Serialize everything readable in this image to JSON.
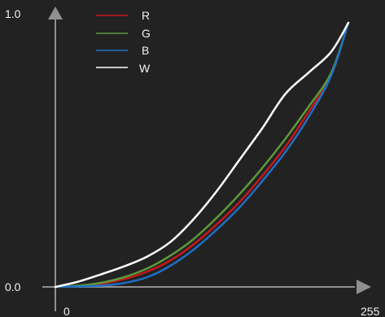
{
  "chart_data": {
    "type": "line",
    "x_ticks": [
      "0",
      "255"
    ],
    "y_ticks": [
      "0.0",
      "1.0"
    ],
    "xlim": [
      0,
      255
    ],
    "ylim": [
      0,
      1
    ],
    "grid": false,
    "legend_position": "top-left",
    "series": [
      {
        "name": "R",
        "color": "#c8171e",
        "points": [
          [
            0,
            0
          ],
          [
            20,
            0.004
          ],
          [
            40,
            0.012
          ],
          [
            60,
            0.03
          ],
          [
            80,
            0.058
          ],
          [
            100,
            0.1
          ],
          [
            120,
            0.16
          ],
          [
            140,
            0.235
          ],
          [
            160,
            0.32
          ],
          [
            180,
            0.42
          ],
          [
            200,
            0.53
          ],
          [
            220,
            0.66
          ],
          [
            240,
            0.8
          ],
          [
            255,
            1
          ]
        ]
      },
      {
        "name": "G",
        "color": "#5c9a3c",
        "points": [
          [
            0,
            0
          ],
          [
            20,
            0.005
          ],
          [
            40,
            0.016
          ],
          [
            60,
            0.037
          ],
          [
            80,
            0.07
          ],
          [
            100,
            0.118
          ],
          [
            120,
            0.18
          ],
          [
            140,
            0.26
          ],
          [
            160,
            0.35
          ],
          [
            180,
            0.45
          ],
          [
            200,
            0.56
          ],
          [
            220,
            0.68
          ],
          [
            240,
            0.81
          ],
          [
            255,
            1
          ]
        ]
      },
      {
        "name": "B",
        "color": "#1e6fc2",
        "points": [
          [
            0,
            0
          ],
          [
            20,
            0.002
          ],
          [
            40,
            0.005
          ],
          [
            60,
            0.015
          ],
          [
            80,
            0.037
          ],
          [
            100,
            0.08
          ],
          [
            120,
            0.14
          ],
          [
            140,
            0.215
          ],
          [
            160,
            0.3
          ],
          [
            180,
            0.4
          ],
          [
            200,
            0.51
          ],
          [
            220,
            0.64
          ],
          [
            240,
            0.8
          ],
          [
            255,
            1
          ]
        ]
      },
      {
        "name": "W",
        "color": "#ffffff",
        "points": [
          [
            0,
            0
          ],
          [
            20,
            0.02
          ],
          [
            40,
            0.048
          ],
          [
            60,
            0.078
          ],
          [
            80,
            0.115
          ],
          [
            100,
            0.17
          ],
          [
            120,
            0.255
          ],
          [
            140,
            0.36
          ],
          [
            160,
            0.48
          ],
          [
            180,
            0.6
          ],
          [
            200,
            0.73
          ],
          [
            220,
            0.81
          ],
          [
            240,
            0.89
          ],
          [
            255,
            1
          ]
        ]
      }
    ]
  }
}
